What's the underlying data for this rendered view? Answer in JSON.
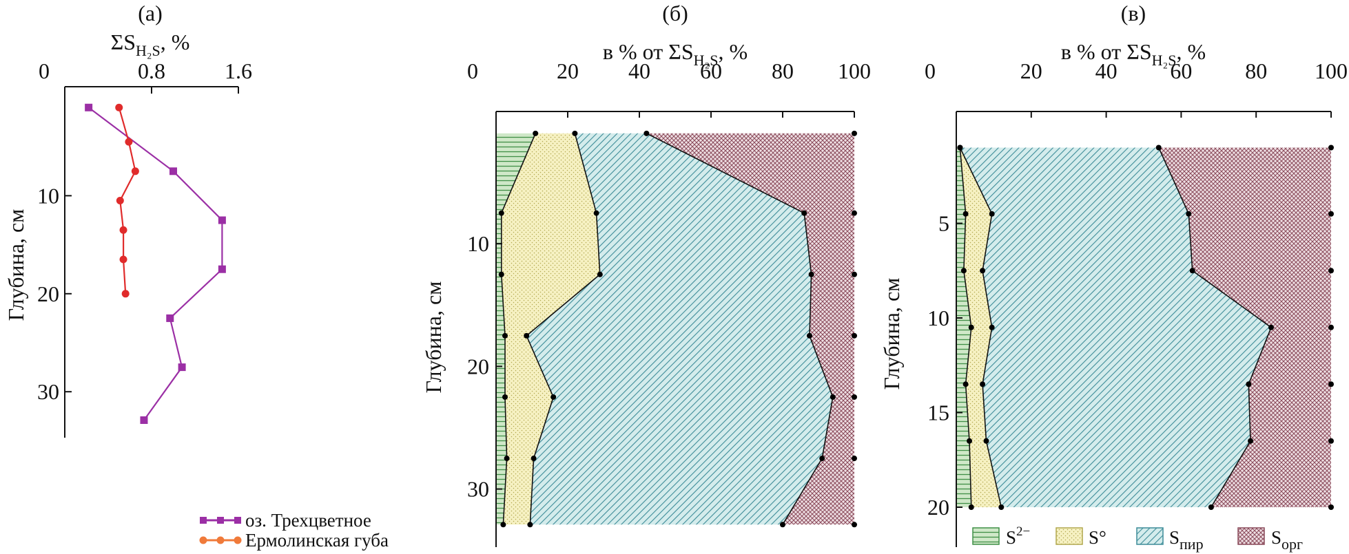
{
  "chart_data": [
    {
      "panel": "(а)",
      "type": "line",
      "x_title_main": "ΣS",
      "x_title_sub": "H₂S",
      "x_title_tail": ", %",
      "y_title": "Глубина, см",
      "xlim": [
        0,
        1.6
      ],
      "ylim": [
        0,
        33
      ],
      "x_ticks": [
        0,
        0.8,
        1.6
      ],
      "x_tick_labels": [
        "0",
        "0.8",
        "1.6"
      ],
      "y_ticks": [
        10,
        20,
        30
      ],
      "y_tick_labels": [
        "10",
        "20",
        "30"
      ],
      "colors": {
        "series1": "#9b2fa5",
        "series2": "#e02b2b",
        "legend_series2": "#f07a3a"
      },
      "series": [
        {
          "name": "оз. Трехцветное",
          "marker": "square",
          "x": [
            0.22,
            1.0,
            1.45,
            1.45,
            0.97,
            1.08,
            0.73
          ],
          "y": [
            1.0,
            7.5,
            12.5,
            17.5,
            22.5,
            27.5,
            32.9
          ]
        },
        {
          "name": "Ермолинская губа",
          "marker": "circle",
          "x": [
            0.5,
            0.59,
            0.65,
            0.51,
            0.54,
            0.54,
            0.56
          ],
          "y": [
            1.0,
            4.5,
            7.5,
            10.5,
            13.5,
            16.5,
            20.0
          ]
        }
      ]
    },
    {
      "panel": "(б)",
      "type": "area",
      "x_title_main": "в % от ΣS",
      "x_title_sub": "H₂S",
      "x_title_tail": ", %",
      "y_title": "Глубина, см",
      "xlim": [
        0,
        100
      ],
      "ylim": [
        0,
        33
      ],
      "x_ticks": [
        0,
        20,
        40,
        60,
        80,
        100
      ],
      "x_tick_labels": [
        "0",
        "20",
        "40",
        "60",
        "80",
        "100"
      ],
      "y_ticks": [
        10,
        20,
        30
      ],
      "y_tick_labels": [
        "10",
        "20",
        "30"
      ],
      "depth": [
        1.0,
        7.5,
        12.5,
        17.5,
        22.5,
        27.5,
        32.9
      ],
      "cumulative": {
        "S2-": [
          11,
          1.5,
          1.5,
          2.5,
          2.5,
          3,
          2
        ],
        "S0": [
          22,
          28,
          29,
          8.5,
          16,
          10.5,
          9.5
        ],
        "Spir": [
          42,
          86,
          88,
          87.5,
          94,
          91,
          80
        ],
        "Sorg": [
          100,
          100,
          100,
          100,
          100,
          100,
          100
        ]
      }
    },
    {
      "panel": "(в)",
      "type": "area",
      "x_title_main": "в % от ΣS",
      "x_title_sub": "H₂S",
      "x_title_tail": ", %",
      "y_title": "Глубина, см",
      "xlim": [
        0,
        100
      ],
      "ylim": [
        0,
        21
      ],
      "x_ticks": [
        0,
        20,
        40,
        60,
        80,
        100
      ],
      "x_tick_labels": [
        "0",
        "20",
        "40",
        "60",
        "80",
        "100"
      ],
      "y_ticks": [
        5,
        10,
        15,
        20
      ],
      "y_tick_labels": [
        "5",
        "10",
        "15",
        "20"
      ],
      "depth": [
        1.0,
        4.5,
        7.5,
        10.5,
        13.5,
        16.5,
        20.0
      ],
      "cumulative": {
        "S2-": [
          1,
          2.5,
          2,
          4,
          2.5,
          3.5,
          4
        ],
        "S0": [
          1,
          9.5,
          7,
          9.5,
          7,
          8,
          12
        ],
        "Spir": [
          54,
          62,
          63,
          84,
          78,
          78.5,
          68
        ],
        "Sorg": [
          100,
          100,
          100,
          100,
          100,
          100,
          100
        ]
      }
    }
  ],
  "legend_areas": [
    {
      "key": "S2-",
      "label_main": "S",
      "label_sup": "2−",
      "label_sub": ""
    },
    {
      "key": "S0",
      "label_main": "S°",
      "label_sup": "",
      "label_sub": ""
    },
    {
      "key": "Spir",
      "label_main": "S",
      "label_sup": "",
      "label_sub": "пир"
    },
    {
      "key": "Sorg",
      "label_main": "S",
      "label_sup": "",
      "label_sub": "орг"
    }
  ],
  "area_colors": {
    "S2-": {
      "fill": "#cfe8c8",
      "line": "#3f8f46"
    },
    "S0": {
      "fill": "#f6f1c2",
      "line": "#b1a74d"
    },
    "Spir": {
      "fill": "#d4ecec",
      "line": "#3d8c98"
    },
    "Sorg": {
      "fill": "#efe0e4",
      "line": "#8a4a5a"
    }
  }
}
